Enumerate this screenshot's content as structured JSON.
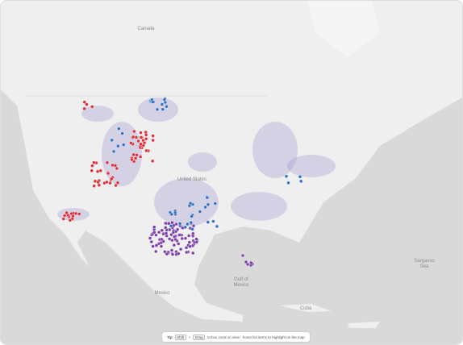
{
  "labels": {
    "canada": "Canada",
    "united_states": "United States",
    "mexico": "Mexico",
    "gulf": [
      "Gulf of",
      "Mexico"
    ],
    "cuba": "Cuba",
    "sargasso": [
      "Sargasso",
      "Sea"
    ]
  },
  "footer": {
    "tip": "Tip",
    "keys": [
      "Shift",
      "+",
      "Drag"
    ],
    "text": "to box zoom to view · hover list items to highlight on the map"
  }
}
